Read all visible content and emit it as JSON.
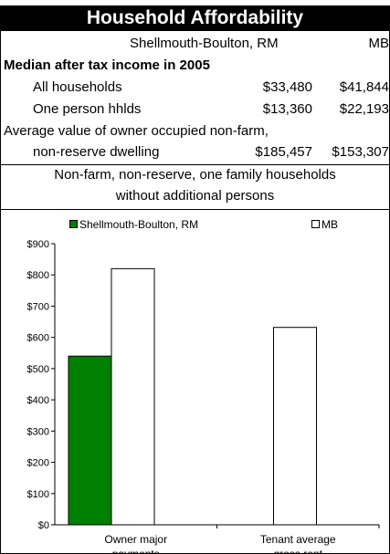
{
  "header": {
    "title": "Household Affordability"
  },
  "table": {
    "col_region": "Shellmouth-Boulton, RM",
    "col_province": "MB",
    "section_title": "Median after tax income in 2005",
    "rows": [
      {
        "label": "All households",
        "region": "$33,480",
        "province": "$41,844"
      },
      {
        "label": "One person hhlds",
        "region": "$13,360",
        "province": "$22,193"
      }
    ],
    "dwelling_label_line1": "Average value of owner occupied non-farm,",
    "dwelling_label_line2": "non-reserve dwelling",
    "dwelling_region": "$185,457",
    "dwelling_province": "$153,307",
    "subheading_line1": "Non-farm, non-reserve, one family households",
    "subheading_line2": "without additional persons"
  },
  "chart_data": {
    "type": "bar",
    "categories": [
      "Owner major payments",
      "Tenant average gross rent"
    ],
    "category_labels": [
      [
        "Owner major",
        "payments"
      ],
      [
        "Tenant average",
        "gross rent"
      ]
    ],
    "series": [
      {
        "name": "Shellmouth-Boulton, RM",
        "values": [
          540,
          null
        ],
        "color": "#008000"
      },
      {
        "name": "MB",
        "values": [
          820,
          632
        ],
        "color": "#ffffff"
      }
    ],
    "ylim": [
      0,
      900
    ],
    "yticks": [
      "$0",
      "$100",
      "$200",
      "$300",
      "$400",
      "$500",
      "$600",
      "$700",
      "$800",
      "$900"
    ],
    "legend": "top",
    "grid": false
  }
}
